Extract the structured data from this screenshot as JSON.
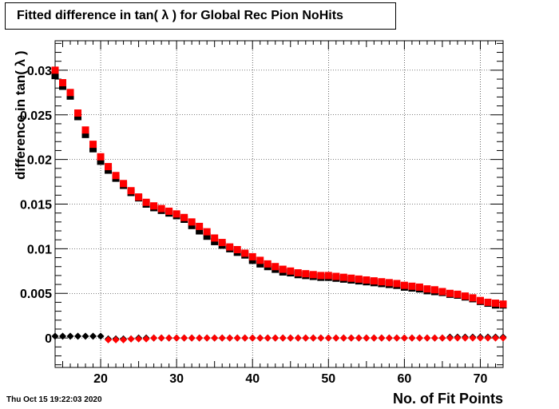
{
  "title": "Fitted difference in tan( λ ) for Global Rec Pion NoHits",
  "datestamp": "Thu Oct 15 19:22:03 2020",
  "chart_data": {
    "type": "scatter",
    "title": "Fitted difference in tan( λ ) for Global Rec Pion NoHits",
    "xlabel": "No. of Fit Points",
    "ylabel": "difference in tan( λ )",
    "xlim": [
      14,
      73
    ],
    "ylim": [
      -0.0033,
      0.0333
    ],
    "grid": true,
    "x_ticks": [
      20,
      30,
      40,
      50,
      60,
      70
    ],
    "x_tick_labels": [
      "20",
      "30",
      "40",
      "50",
      "60",
      "70"
    ],
    "y_ticks": [
      0,
      0.005,
      0.01,
      0.015,
      0.02,
      0.025,
      0.03
    ],
    "y_tick_labels": [
      "0",
      "0.005",
      "0.01",
      "0.015",
      "0.02",
      "0.025",
      "0.03"
    ],
    "x": [
      14,
      15,
      16,
      17,
      18,
      19,
      20,
      21,
      22,
      23,
      24,
      25,
      26,
      27,
      28,
      29,
      30,
      31,
      32,
      33,
      34,
      35,
      36,
      37,
      38,
      39,
      40,
      41,
      42,
      43,
      44,
      45,
      46,
      47,
      48,
      49,
      50,
      51,
      52,
      53,
      54,
      55,
      56,
      57,
      58,
      59,
      60,
      61,
      62,
      63,
      64,
      65,
      66,
      67,
      68,
      69,
      70,
      71,
      72,
      73
    ],
    "series": [
      {
        "marker": "square",
        "color": "#000000",
        "values": [
          0.0294,
          0.0282,
          0.0271,
          0.0248,
          0.0228,
          0.0212,
          0.0198,
          0.0188,
          0.0179,
          0.0171,
          0.0163,
          0.0157,
          0.015,
          0.0146,
          0.0143,
          0.014,
          0.0137,
          0.0133,
          0.0126,
          0.012,
          0.0114,
          0.0108,
          0.0104,
          0.01,
          0.0096,
          0.0093,
          0.0087,
          0.0083,
          0.008,
          0.0077,
          0.0074,
          0.0073,
          0.0071,
          0.007,
          0.0069,
          0.0068,
          0.0068,
          0.0067,
          0.0066,
          0.0065,
          0.0064,
          0.0063,
          0.0062,
          0.0061,
          0.006,
          0.0059,
          0.0057,
          0.0056,
          0.0055,
          0.0053,
          0.0052,
          0.0051,
          0.0049,
          0.0048,
          0.0046,
          0.0044,
          0.0041,
          0.0039,
          0.0037,
          0.0037
        ]
      },
      {
        "marker": "square",
        "color": "#ff0000",
        "values": [
          0.03,
          0.0286,
          0.0275,
          0.0252,
          0.0233,
          0.0217,
          0.0203,
          0.0192,
          0.0182,
          0.0173,
          0.0165,
          0.0158,
          0.0152,
          0.0148,
          0.0145,
          0.0142,
          0.0139,
          0.0135,
          0.013,
          0.0125,
          0.0119,
          0.0112,
          0.0107,
          0.0102,
          0.0099,
          0.0095,
          0.0091,
          0.0087,
          0.0083,
          0.008,
          0.0077,
          0.0075,
          0.0073,
          0.0072,
          0.0071,
          0.007,
          0.007,
          0.0069,
          0.0068,
          0.0067,
          0.0066,
          0.0065,
          0.0064,
          0.0063,
          0.0062,
          0.0061,
          0.0059,
          0.0058,
          0.0057,
          0.0055,
          0.0054,
          0.0052,
          0.005,
          0.0049,
          0.0047,
          0.0045,
          0.0042,
          0.004,
          0.0039,
          0.0038
        ]
      },
      {
        "marker": "diamond",
        "color": "#000000",
        "values": [
          0.0002,
          0.0002,
          0.0002,
          0.0002,
          0.0002,
          0.0002,
          0.0002,
          -0.0001,
          -0.0001,
          -0.0001,
          -0.0001,
          0.0,
          0.0,
          0.0,
          0.0,
          0.0,
          0.0,
          0.0,
          0.0,
          0.0,
          0.0,
          0.0,
          0.0,
          0.0,
          0.0,
          0.0,
          0.0,
          0.0,
          0.0,
          0.0,
          0.0,
          0.0,
          0.0,
          0.0,
          0.0,
          0.0,
          0.0,
          0.0,
          0.0,
          0.0,
          0.0,
          0.0,
          0.0,
          0.0,
          0.0,
          0.0,
          0.0,
          0.0,
          0.0,
          0.0,
          0.0,
          0.0,
          0.0001,
          0.0001,
          0.0001,
          0.0001,
          0.0001,
          0.0001,
          0.0001,
          0.0001
        ]
      },
      {
        "marker": "diamond",
        "color": "#ff0000",
        "values": [
          null,
          null,
          null,
          null,
          null,
          null,
          null,
          -0.0002,
          -0.0002,
          -0.0002,
          -0.0001,
          -0.0001,
          -0.0001,
          0.0,
          0.0,
          0.0,
          0.0,
          0.0,
          0.0,
          0.0,
          0.0,
          0.0,
          0.0,
          0.0,
          0.0,
          0.0,
          0.0,
          0.0,
          0.0,
          0.0,
          0.0,
          0.0,
          0.0,
          0.0,
          0.0,
          0.0,
          0.0,
          0.0,
          0.0,
          0.0,
          0.0,
          0.0,
          0.0,
          0.0,
          0.0,
          0.0,
          0.0,
          0.0,
          0.0,
          0.0,
          0.0,
          0.0,
          0.0,
          0.0,
          0.0,
          0.0,
          0.0,
          0.0,
          0.0,
          0.0
        ]
      }
    ]
  }
}
